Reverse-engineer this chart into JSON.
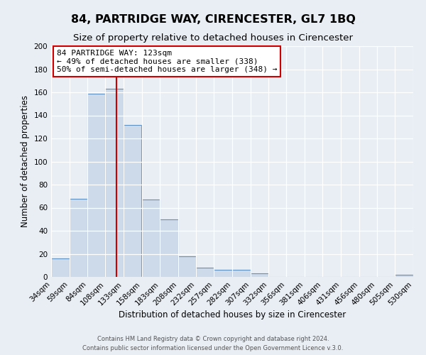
{
  "title": "84, PARTRIDGE WAY, CIRENCESTER, GL7 1BQ",
  "subtitle": "Size of property relative to detached houses in Cirencester",
  "xlabel": "Distribution of detached houses by size in Cirencester",
  "ylabel": "Number of detached properties",
  "bin_edges": [
    34,
    59,
    84,
    108,
    133,
    158,
    183,
    208,
    232,
    257,
    282,
    307,
    332,
    356,
    381,
    406,
    431,
    456,
    480,
    505,
    530
  ],
  "bar_heights": [
    16,
    68,
    159,
    163,
    132,
    67,
    50,
    18,
    8,
    6,
    6,
    3,
    0,
    0,
    0,
    0,
    0,
    0,
    0,
    2
  ],
  "bar_color": "#cddaea",
  "bar_edge_color": "#6090c0",
  "vline_x": 123,
  "vline_color": "#cc0000",
  "ylim": [
    0,
    200
  ],
  "yticks": [
    0,
    20,
    40,
    60,
    80,
    100,
    120,
    140,
    160,
    180,
    200
  ],
  "annotation_title": "84 PARTRIDGE WAY: 123sqm",
  "annotation_line1": "← 49% of detached houses are smaller (338)",
  "annotation_line2": "50% of semi-detached houses are larger (348) →",
  "annotation_box_color": "#ffffff",
  "annotation_border_color": "#cc0000",
  "footer_line1": "Contains HM Land Registry data © Crown copyright and database right 2024.",
  "footer_line2": "Contains public sector information licensed under the Open Government Licence v.3.0.",
  "background_color": "#e8eef4",
  "grid_color": "#ffffff",
  "title_fontsize": 11.5,
  "subtitle_fontsize": 9.5,
  "tick_fontsize": 7.5,
  "ylabel_fontsize": 8.5,
  "xlabel_fontsize": 8.5
}
